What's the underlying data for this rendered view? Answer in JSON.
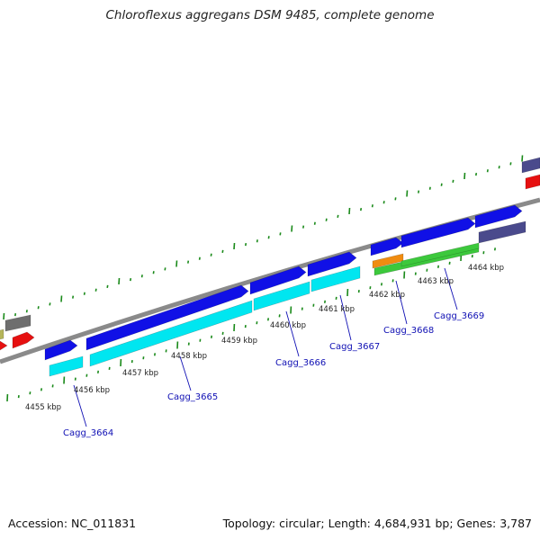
{
  "title": "Chloroflexus aggregans DSM 9485, complete genome",
  "footer": {
    "accession": "Accession: NC_011831",
    "summary": "Topology: circular; Length: 4,684,931 bp; Genes: 3,787"
  },
  "colors": {
    "backbone": "#8a8a8a",
    "ticks": "#1a8a1a",
    "cds_forward": "#1010e6",
    "gene_forward": "#00e6f0",
    "cds_reverse_red": "#e61010",
    "gene_green": "#3cc83c",
    "gene_orange": "#f08c10",
    "purple": "#4a4a8c",
    "grey": "#6e6e6e",
    "label": "#1010b4"
  },
  "kbp_ticks": [
    "4455 kbp",
    "4456 kbp",
    "4457 kbp",
    "4458 kbp",
    "4459 kbp",
    "4460 kbp",
    "4461 kbp",
    "4462 kbp",
    "4463 kbp",
    "4464 kbp"
  ],
  "gene_labels": [
    "Cagg_3664",
    "Cagg_3665",
    "Cagg_3666",
    "Cagg_3667",
    "Cagg_3668",
    "Cagg_3669"
  ]
}
